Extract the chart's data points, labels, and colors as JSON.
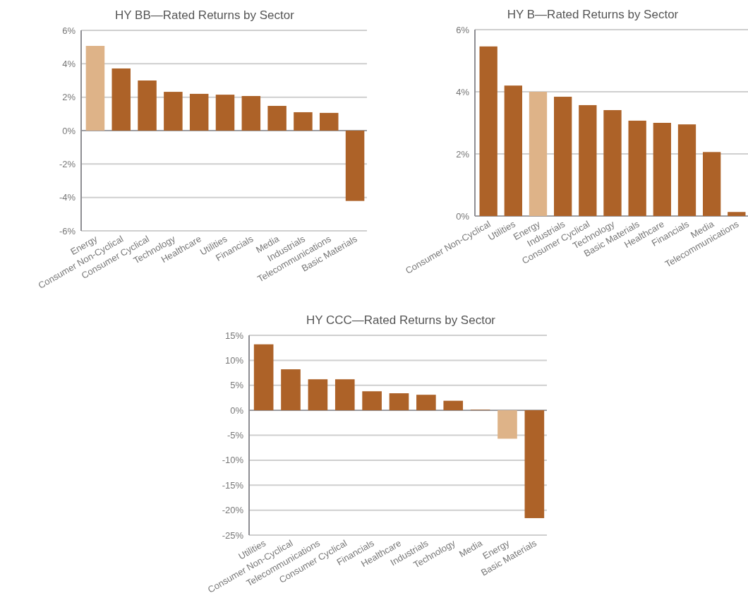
{
  "chart_data": [
    {
      "type": "bar",
      "title": "HY BB—Rated Returns by Sector",
      "categories": [
        "Energy",
        "Consumer Non-Cyclical",
        "Consumer Cyclical",
        "Technology",
        "Healthcare",
        "Utilities",
        "Financials",
        "Media",
        "Industrials",
        "Telecommunications",
        "Basic Materials"
      ],
      "values": [
        5.07,
        3.72,
        3.0,
        2.32,
        2.2,
        2.15,
        2.07,
        1.48,
        1.1,
        1.06,
        -4.21
      ],
      "colors": [
        "#deb388",
        "#ad6228",
        "#ad6228",
        "#ad6228",
        "#ad6228",
        "#ad6228",
        "#ad6228",
        "#ad6228",
        "#ad6228",
        "#ad6228",
        "#ad6228"
      ],
      "ylim": [
        -6,
        6
      ],
      "yticks": [
        {
          "value": -6,
          "label": "-6%"
        },
        {
          "value": -4,
          "label": "-4%"
        },
        {
          "value": -2,
          "label": "-2%"
        },
        {
          "value": 0,
          "label": "0%"
        },
        {
          "value": 2,
          "label": "2%"
        },
        {
          "value": 4,
          "label": "4%"
        },
        {
          "value": 6,
          "label": "6%"
        }
      ],
      "grid": "y"
    },
    {
      "type": "bar",
      "title": "HY B—Rated Returns by Sector",
      "categories": [
        "Consumer Non-Cyclical",
        "Utilities",
        "Energy",
        "Industrials",
        "Consumer Cyclical",
        "Technology",
        "Basic Materials",
        "Healthcare",
        "Financials",
        "Media",
        "Telecommunications"
      ],
      "values": [
        5.46,
        4.2,
        4.0,
        3.84,
        3.57,
        3.41,
        3.07,
        3.0,
        2.95,
        2.06,
        0.13
      ],
      "colors": [
        "#ad6228",
        "#ad6228",
        "#deb388",
        "#ad6228",
        "#ad6228",
        "#ad6228",
        "#ad6228",
        "#ad6228",
        "#ad6228",
        "#ad6228",
        "#ad6228"
      ],
      "ylim": [
        0,
        6
      ],
      "yticks": [
        {
          "value": 0,
          "label": "0%"
        },
        {
          "value": 2,
          "label": "2%"
        },
        {
          "value": 4,
          "label": "4%"
        },
        {
          "value": 6,
          "label": "6%"
        }
      ],
      "grid": "y"
    },
    {
      "type": "bar",
      "title": "HY CCC—Rated Returns by Sector",
      "categories": [
        "Utilities",
        "Consumer Non-Cyclical",
        "Telecommunications",
        "Consumer Cyclical",
        "Financials",
        "Healthcare",
        "Industrials",
        "Technology",
        "Media",
        "Energy",
        "Basic Materials"
      ],
      "values": [
        13.2,
        8.2,
        6.2,
        6.2,
        3.8,
        3.4,
        3.1,
        1.9,
        0.1,
        -5.7,
        -21.6
      ],
      "colors": [
        "#ad6228",
        "#ad6228",
        "#ad6228",
        "#ad6228",
        "#ad6228",
        "#ad6228",
        "#ad6228",
        "#ad6228",
        "#ad6228",
        "#deb388",
        "#ad6228"
      ],
      "ylim": [
        -25,
        15
      ],
      "yticks": [
        {
          "value": -25,
          "label": "-25%"
        },
        {
          "value": -20,
          "label": "-20%"
        },
        {
          "value": -15,
          "label": "-15%"
        },
        {
          "value": -10,
          "label": "-10%"
        },
        {
          "value": -5,
          "label": "-5%"
        },
        {
          "value": 0,
          "label": "0%"
        },
        {
          "value": 5,
          "label": "5%"
        },
        {
          "value": 10,
          "label": "10%"
        },
        {
          "value": 15,
          "label": "15%"
        }
      ],
      "grid": "y"
    }
  ]
}
